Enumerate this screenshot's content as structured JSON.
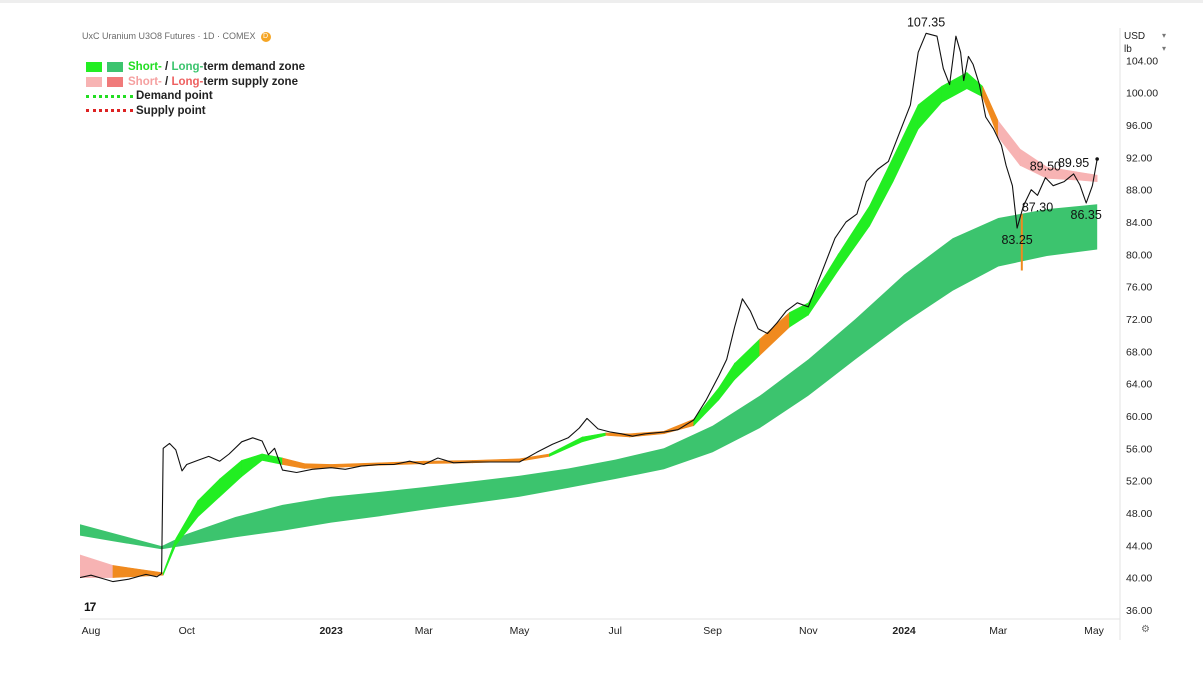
{
  "chart_data": {
    "type": "line",
    "title": "UxC Uranium U3O8 Futures · 1D · COMEX",
    "badge": "D",
    "currency": "USD",
    "unit_label": "lb",
    "y_ticks": [
      "104.00",
      "100.00",
      "96.00",
      "92.00",
      "88.00",
      "84.00",
      "80.00",
      "76.00",
      "72.00",
      "68.00",
      "64.00",
      "60.00",
      "56.00",
      "52.00",
      "48.00",
      "44.00",
      "40.00",
      "36.00"
    ],
    "ylim": [
      35,
      109
    ],
    "xlim": [
      "2022-07-25",
      "2024-05-08"
    ],
    "x_ticks": [
      {
        "label": "Aug",
        "date": "2022-08-01",
        "bold": false
      },
      {
        "label": "Oct",
        "date": "2022-10-01",
        "bold": false
      },
      {
        "label": "2023",
        "date": "2023-01-01",
        "bold": true
      },
      {
        "label": "Mar",
        "date": "2023-03-01",
        "bold": false
      },
      {
        "label": "May",
        "date": "2023-05-01",
        "bold": false
      },
      {
        "label": "Jul",
        "date": "2023-07-01",
        "bold": false
      },
      {
        "label": "Sep",
        "date": "2023-09-01",
        "bold": false
      },
      {
        "label": "Nov",
        "date": "2023-11-01",
        "bold": false
      },
      {
        "label": "2024",
        "date": "2024-01-01",
        "bold": true
      },
      {
        "label": "Mar",
        "date": "2024-03-01",
        "bold": false
      },
      {
        "label": "May",
        "date": "2024-05-01",
        "bold": false
      }
    ],
    "legend": {
      "zone1_short": "Short-",
      "zone1_sep": " / ",
      "zone1_long": "Long-",
      "zone1_rest": "term demand zone",
      "zone2_short": "Short-",
      "zone2_sep": " / ",
      "zone2_long": "Long-",
      "zone2_rest": "term supply zone",
      "demand_point": "Demand point",
      "supply_point": "Supply point"
    },
    "colors": {
      "price": "#111111",
      "short_demand": "#22ee22",
      "long_demand": "#3cc46e",
      "short_supply": "#f7b3b3",
      "long_supply": "#f07a7a",
      "overlap": "#f08a1e",
      "demand_point": "#22dd22",
      "supply_point": "#dd2222"
    },
    "price": [
      [
        "2022-07-25",
        40.0
      ],
      [
        "2022-08-01",
        40.3
      ],
      [
        "2022-08-08",
        39.9
      ],
      [
        "2022-08-15",
        39.5
      ],
      [
        "2022-08-25",
        39.8
      ],
      [
        "2022-09-05",
        40.4
      ],
      [
        "2022-09-12",
        40.1
      ],
      [
        "2022-09-15",
        40.5
      ],
      [
        "2022-09-16",
        56.0
      ],
      [
        "2022-09-20",
        56.6
      ],
      [
        "2022-09-24",
        55.8
      ],
      [
        "2022-09-28",
        53.2
      ],
      [
        "2022-10-01",
        54.0
      ],
      [
        "2022-10-08",
        54.5
      ],
      [
        "2022-10-15",
        55.0
      ],
      [
        "2022-10-22",
        54.4
      ],
      [
        "2022-10-28",
        55.3
      ],
      [
        "2022-11-05",
        56.8
      ],
      [
        "2022-11-12",
        57.3
      ],
      [
        "2022-11-18",
        56.9
      ],
      [
        "2022-11-22",
        55.2
      ],
      [
        "2022-11-26",
        56.0
      ],
      [
        "2022-12-01",
        53.3
      ],
      [
        "2022-12-10",
        53.0
      ],
      [
        "2022-12-20",
        53.4
      ],
      [
        "2023-01-01",
        53.6
      ],
      [
        "2023-01-10",
        53.4
      ],
      [
        "2023-01-20",
        53.8
      ],
      [
        "2023-02-01",
        54.0
      ],
      [
        "2023-02-10",
        54.0
      ],
      [
        "2023-02-20",
        54.4
      ],
      [
        "2023-03-01",
        54.0
      ],
      [
        "2023-03-10",
        54.8
      ],
      [
        "2023-03-20",
        54.2
      ],
      [
        "2023-04-01",
        54.3
      ],
      [
        "2023-04-20",
        54.3
      ],
      [
        "2023-05-01",
        54.3
      ],
      [
        "2023-05-12",
        55.5
      ],
      [
        "2023-05-22",
        56.5
      ],
      [
        "2023-06-01",
        57.3
      ],
      [
        "2023-06-08",
        58.5
      ],
      [
        "2023-06-13",
        59.7
      ],
      [
        "2023-06-20",
        58.4
      ],
      [
        "2023-06-28",
        58.0
      ],
      [
        "2023-07-05",
        57.8
      ],
      [
        "2023-07-12",
        57.5
      ],
      [
        "2023-07-20",
        57.8
      ],
      [
        "2023-08-01",
        58.0
      ],
      [
        "2023-08-10",
        58.3
      ],
      [
        "2023-08-20",
        59.5
      ],
      [
        "2023-08-28",
        62.0
      ],
      [
        "2023-09-05",
        65.0
      ],
      [
        "2023-09-10",
        67.0
      ],
      [
        "2023-09-15",
        71.0
      ],
      [
        "2023-09-20",
        74.5
      ],
      [
        "2023-09-25",
        73.0
      ],
      [
        "2023-09-30",
        70.8
      ],
      [
        "2023-10-06",
        70.2
      ],
      [
        "2023-10-12",
        71.5
      ],
      [
        "2023-10-18",
        73.0
      ],
      [
        "2023-10-25",
        74.0
      ],
      [
        "2023-11-01",
        73.5
      ],
      [
        "2023-11-06",
        76.0
      ],
      [
        "2023-11-12",
        79.0
      ],
      [
        "2023-11-18",
        82.0
      ],
      [
        "2023-11-25",
        84.0
      ],
      [
        "2023-12-02",
        85.0
      ],
      [
        "2023-12-08",
        89.0
      ],
      [
        "2023-12-15",
        90.5
      ],
      [
        "2023-12-22",
        91.5
      ],
      [
        "2023-12-29",
        95.0
      ],
      [
        "2024-01-05",
        98.5
      ],
      [
        "2024-01-10",
        105.0
      ],
      [
        "2024-01-15",
        107.35
      ],
      [
        "2024-01-22",
        107.0
      ],
      [
        "2024-01-26",
        103.0
      ],
      [
        "2024-01-30",
        101.0
      ],
      [
        "2024-02-03",
        107.0
      ],
      [
        "2024-02-06",
        105.0
      ],
      [
        "2024-02-08",
        101.5
      ],
      [
        "2024-02-11",
        104.5
      ],
      [
        "2024-02-14",
        103.5
      ],
      [
        "2024-02-18",
        101.0
      ],
      [
        "2024-02-22",
        97.0
      ],
      [
        "2024-02-27",
        95.5
      ],
      [
        "2024-03-03",
        93.5
      ],
      [
        "2024-03-06",
        91.0
      ],
      [
        "2024-03-10",
        88.5
      ],
      [
        "2024-03-13",
        83.25
      ],
      [
        "2024-03-17",
        86.0
      ],
      [
        "2024-03-22",
        88.0
      ],
      [
        "2024-03-26",
        87.3
      ],
      [
        "2024-03-31",
        89.5
      ],
      [
        "2024-04-05",
        88.5
      ],
      [
        "2024-04-12",
        89.0
      ],
      [
        "2024-04-18",
        89.95
      ],
      [
        "2024-04-22",
        88.6
      ],
      [
        "2024-04-26",
        86.35
      ],
      [
        "2024-04-30",
        88.5
      ],
      [
        "2024-05-03",
        91.8
      ]
    ],
    "short_term_zone": [
      [
        "2022-07-25",
        40.0,
        42.8
      ],
      [
        "2022-08-15",
        40.0,
        41.5
      ],
      [
        "2022-09-16",
        40.3,
        40.6
      ],
      [
        "2022-09-24",
        44.0,
        44.8
      ],
      [
        "2022-10-08",
        47.5,
        49.5
      ],
      [
        "2022-10-22",
        50.0,
        52.2
      ],
      [
        "2022-11-05",
        52.5,
        54.5
      ],
      [
        "2022-11-18",
        54.5,
        55.3
      ],
      [
        "2022-12-01",
        54.0,
        54.8
      ],
      [
        "2022-12-15",
        53.5,
        54.1
      ],
      [
        "2023-01-01",
        53.6,
        54.0
      ],
      [
        "2023-02-01",
        53.9,
        54.2
      ],
      [
        "2023-03-01",
        54.1,
        54.4
      ],
      [
        "2023-04-01",
        54.2,
        54.5
      ],
      [
        "2023-05-01",
        54.4,
        54.7
      ],
      [
        "2023-05-20",
        55.0,
        55.3
      ],
      [
        "2023-06-10",
        56.8,
        57.4
      ],
      [
        "2023-06-25",
        57.6,
        57.9
      ],
      [
        "2023-07-10",
        57.4,
        57.8
      ],
      [
        "2023-08-01",
        57.8,
        58.1
      ],
      [
        "2023-08-20",
        58.8,
        59.6
      ],
      [
        "2023-09-05",
        62.0,
        63.5
      ],
      [
        "2023-09-15",
        64.5,
        66.5
      ],
      [
        "2023-10-01",
        67.5,
        69.5
      ],
      [
        "2023-10-20",
        71.0,
        72.8
      ],
      [
        "2023-11-01",
        72.5,
        74.0
      ],
      [
        "2023-11-20",
        78.0,
        80.0
      ],
      [
        "2023-12-10",
        83.5,
        86.0
      ],
      [
        "2023-12-25",
        89.0,
        92.0
      ],
      [
        "2024-01-10",
        95.5,
        98.5
      ],
      [
        "2024-01-25",
        98.8,
        100.8
      ],
      [
        "2024-02-10",
        100.5,
        102.5
      ],
      [
        "2024-02-20",
        99.5,
        100.8
      ],
      [
        "2024-03-01",
        94.5,
        96.5
      ],
      [
        "2024-03-15",
        91.0,
        93.0
      ],
      [
        "2024-04-01",
        89.4,
        90.8
      ],
      [
        "2024-04-20",
        89.2,
        90.2
      ],
      [
        "2024-05-03",
        89.0,
        89.8
      ]
    ],
    "long_term_zone": [
      [
        "2022-07-25",
        45.2,
        46.6
      ],
      [
        "2022-08-15",
        44.5,
        45.5
      ],
      [
        "2022-09-15",
        43.5,
        43.9
      ],
      [
        "2022-10-01",
        44.0,
        45.4
      ],
      [
        "2022-11-01",
        45.0,
        47.5
      ],
      [
        "2022-12-01",
        45.8,
        49.0
      ],
      [
        "2023-01-01",
        46.8,
        50.0
      ],
      [
        "2023-02-01",
        47.6,
        50.6
      ],
      [
        "2023-03-01",
        48.4,
        51.2
      ],
      [
        "2023-04-01",
        49.2,
        51.9
      ],
      [
        "2023-05-01",
        50.0,
        52.6
      ],
      [
        "2023-06-01",
        51.1,
        53.5
      ],
      [
        "2023-07-01",
        52.2,
        54.6
      ],
      [
        "2023-08-01",
        53.4,
        56.0
      ],
      [
        "2023-09-01",
        55.5,
        58.8
      ],
      [
        "2023-10-01",
        58.5,
        62.5
      ],
      [
        "2023-11-01",
        62.5,
        67.0
      ],
      [
        "2023-12-01",
        67.0,
        72.0
      ],
      [
        "2024-01-01",
        71.5,
        77.5
      ],
      [
        "2024-02-01",
        75.5,
        82.0
      ],
      [
        "2024-03-01",
        78.5,
        84.5
      ],
      [
        "2024-04-01",
        79.8,
        85.6
      ],
      [
        "2024-05-03",
        80.6,
        86.2
      ]
    ],
    "annotations": [
      {
        "text": "107.35",
        "date": "2024-01-15",
        "value": 107.35,
        "pos": "above"
      },
      {
        "text": "89.50",
        "date": "2024-03-31",
        "value": 89.5,
        "pos": "above"
      },
      {
        "text": "89.95",
        "date": "2024-04-18",
        "value": 89.95,
        "pos": "above"
      },
      {
        "text": "87.30",
        "date": "2024-03-26",
        "value": 87.3,
        "pos": "below"
      },
      {
        "text": "86.35",
        "date": "2024-04-26",
        "value": 86.35,
        "pos": "below"
      },
      {
        "text": "83.25",
        "date": "2024-03-13",
        "value": 83.25,
        "pos": "below"
      }
    ],
    "marker_date": "2024-03-16",
    "marker_range": [
      78.0,
      85.0
    ]
  },
  "watermark": "17"
}
